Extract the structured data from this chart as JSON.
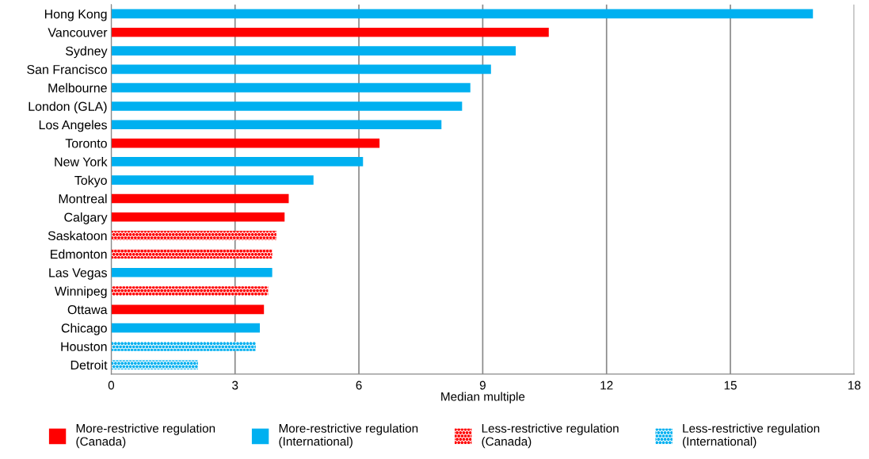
{
  "chart_data": {
    "type": "bar",
    "orientation": "horizontal",
    "stacked": true,
    "categories": [
      "Hong Kong",
      "Vancouver",
      "Sydney",
      "San Francisco",
      "Melbourne",
      "London (GLA)",
      "Los Angeles",
      "Toronto",
      "New York",
      "Tokyo",
      "Montreal",
      "Calgary",
      "Saskatoon",
      "Edmonton",
      "Las Vegas",
      "Winnipeg",
      "Ottawa",
      "Chicago",
      "Houston",
      "Detroit"
    ],
    "series": [
      {
        "name": "More-restrictive regulation\n(Canada)",
        "color": "#ff0000",
        "line_style": "solid",
        "values": [
          null,
          10.6,
          null,
          null,
          null,
          null,
          null,
          6.5,
          null,
          null,
          4.3,
          4.2,
          null,
          null,
          null,
          null,
          3.7,
          null,
          null,
          null
        ]
      },
      {
        "name": "More-restrictive regulation\n(International)",
        "color": "#00b0f0",
        "line_style": "solid",
        "values": [
          17.0,
          null,
          9.8,
          9.2,
          8.7,
          8.5,
          8.0,
          null,
          6.1,
          4.9,
          null,
          null,
          null,
          null,
          3.9,
          null,
          null,
          3.6,
          null,
          null
        ]
      },
      {
        "name": "Less-restrictive regulation\n(Canada)",
        "color": "#ff0000",
        "line_style": "dotted",
        "values": [
          null,
          null,
          null,
          null,
          null,
          null,
          null,
          null,
          null,
          null,
          null,
          null,
          4.0,
          3.9,
          null,
          3.8,
          null,
          null,
          null,
          null
        ]
      },
      {
        "name": "Less-restrictive regulation\n(International)",
        "color": "#00b0f0",
        "line_style": "dotted",
        "values": [
          null,
          null,
          null,
          null,
          null,
          null,
          null,
          null,
          null,
          null,
          null,
          null,
          null,
          null,
          null,
          null,
          null,
          null,
          3.5,
          2.1
        ]
      }
    ],
    "xlabel": "Median multiple",
    "xlim": [
      0,
      18
    ],
    "xticks": [
      0,
      3,
      6,
      9,
      12,
      15,
      18
    ],
    "grid": "x",
    "legend": "bottom"
  }
}
